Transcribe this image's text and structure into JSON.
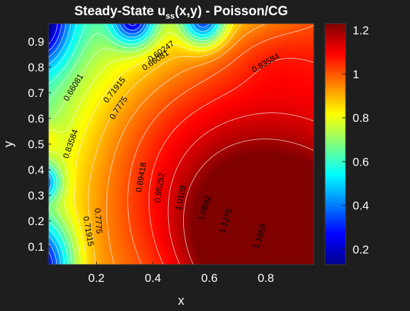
{
  "chart_data": {
    "type": "contour",
    "title_main": "Steady-State u",
    "title_sub": "ss",
    "title_rest": "(x,y) - Poisson/CG",
    "xlabel": "x",
    "ylabel": "y",
    "xlim": [
      0.03,
      0.97
    ],
    "ylim": [
      0.03,
      0.97
    ],
    "x_ticks": [
      {
        "value": 0.2,
        "label": "0.2"
      },
      {
        "value": 0.4,
        "label": "0.4"
      },
      {
        "value": 0.6,
        "label": "0.6"
      },
      {
        "value": 0.8,
        "label": "0.8"
      }
    ],
    "y_ticks": [
      {
        "value": 0.1,
        "label": "0.1"
      },
      {
        "value": 0.2,
        "label": "0.2"
      },
      {
        "value": 0.3,
        "label": "0.3"
      },
      {
        "value": 0.4,
        "label": "0.4"
      },
      {
        "value": 0.5,
        "label": "0.5"
      },
      {
        "value": 0.6,
        "label": "0.6"
      },
      {
        "value": 0.7,
        "label": "0.7"
      },
      {
        "value": 0.8,
        "label": "0.8"
      },
      {
        "value": 0.9,
        "label": "0.9"
      }
    ],
    "colormap": "jet",
    "colorbar": {
      "range": [
        0.13,
        1.23
      ],
      "ticks": [
        {
          "value": 0.2,
          "label": "0.2"
        },
        {
          "value": 0.4,
          "label": "0.4"
        },
        {
          "value": 0.6,
          "label": "0.6"
        },
        {
          "value": 0.8,
          "label": "0.8"
        },
        {
          "value": 1.0,
          "label": "1"
        },
        {
          "value": 1.2,
          "label": "1.2"
        }
      ]
    },
    "levels": [
      0.60247,
      0.66081,
      0.71915,
      0.7775,
      0.83584,
      0.89418,
      0.95252,
      1.0109,
      1.0692,
      1.1275,
      1.1859
    ],
    "contour_labels": [
      {
        "text": "0.60247",
        "x": 0.43,
        "y": 0.86
      },
      {
        "text": "0.66081",
        "x": 0.41,
        "y": 0.825
      },
      {
        "text": "0.83584",
        "x": 0.8,
        "y": 0.815
      },
      {
        "text": "0.66081",
        "x": 0.12,
        "y": 0.72
      },
      {
        "text": "0.71915",
        "x": 0.265,
        "y": 0.71
      },
      {
        "text": "0.7775",
        "x": 0.28,
        "y": 0.64
      },
      {
        "text": "0.83584",
        "x": 0.11,
        "y": 0.5
      },
      {
        "text": "0.89418",
        "x": 0.36,
        "y": 0.37
      },
      {
        "text": "0.95252",
        "x": 0.425,
        "y": 0.33
      },
      {
        "text": "1.0109",
        "x": 0.5,
        "y": 0.29
      },
      {
        "text": "1.0692",
        "x": 0.585,
        "y": 0.25
      },
      {
        "text": "1.1275",
        "x": 0.66,
        "y": 0.2
      },
      {
        "text": "1.1859",
        "x": 0.78,
        "y": 0.14
      },
      {
        "text": "0.7775",
        "x": 0.205,
        "y": 0.2
      },
      {
        "text": "0.71915",
        "x": 0.17,
        "y": 0.16
      }
    ]
  }
}
